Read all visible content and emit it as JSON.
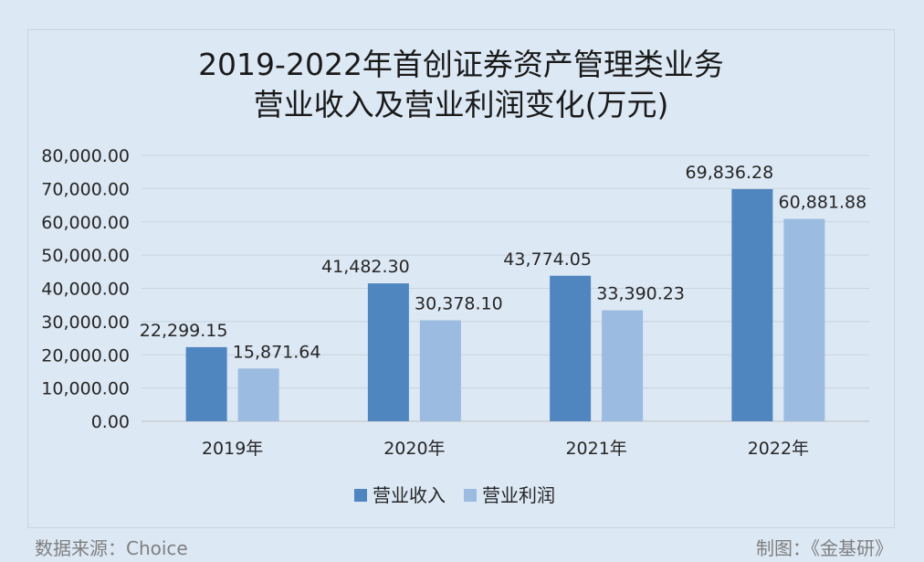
{
  "footer": {
    "source": "数据来源：Choice",
    "credit": "制图：《金基研》"
  },
  "chart_data": {
    "type": "bar",
    "title": [
      "2019-2022年首创证券资产管理类业务",
      "营业收入及营业利润变化(万元)"
    ],
    "categories": [
      "2019年",
      "2020年",
      "2021年",
      "2022年"
    ],
    "series": [
      {
        "name": "营业收入",
        "values": [
          22299.15,
          41482.3,
          43774.05,
          69836.28
        ],
        "labels": [
          "22,299.15",
          "41,482.30",
          "43,774.05",
          "69,836.28"
        ],
        "color": "#4f86c0"
      },
      {
        "name": "营业利润",
        "values": [
          15871.64,
          30378.1,
          33390.23,
          60881.88
        ],
        "labels": [
          "15,871.64",
          "30,378.10",
          "33,390.23",
          "60,881.88"
        ],
        "color": "#9cbbe0"
      }
    ],
    "yticks": [
      "0.00",
      "10,000.00",
      "20,000.00",
      "30,000.00",
      "40,000.00",
      "50,000.00",
      "60,000.00",
      "70,000.00",
      "80,000.00"
    ],
    "ylim": [
      0,
      80000
    ],
    "grid": true,
    "legend_position": "bottom"
  }
}
